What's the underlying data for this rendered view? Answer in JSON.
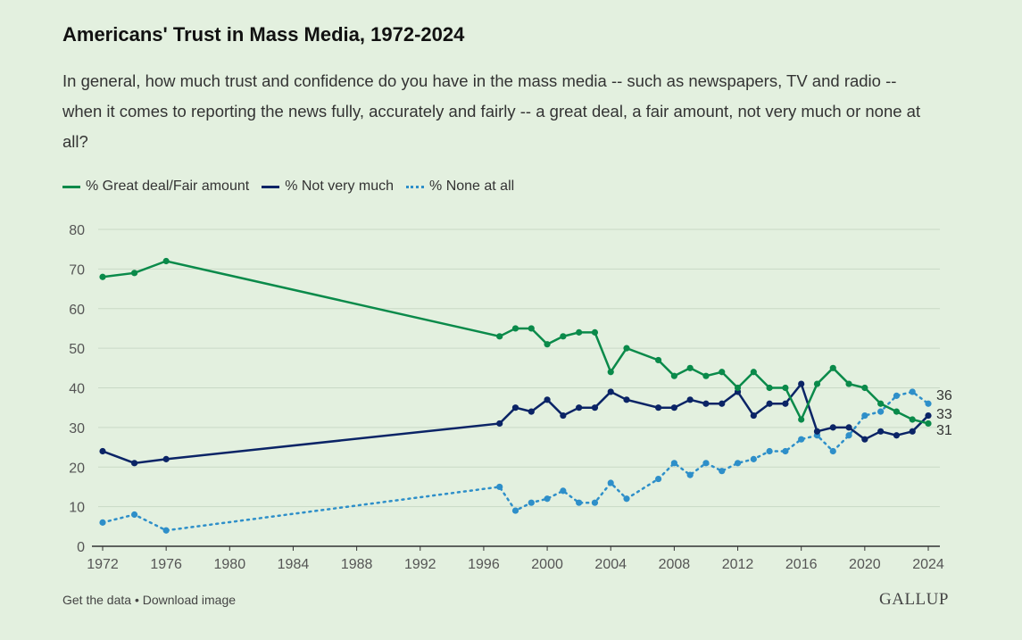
{
  "title": "Americans' Trust in Mass Media, 1972-2024",
  "subtitle": "In general, how much trust and confidence do you have in the mass media -- such as newspapers, TV and radio -- when it comes to reporting the news fully, accurately and fairly -- a great deal, a fair amount, not very much or none at all?",
  "footer": {
    "get_data": "Get the data",
    "sep": " • ",
    "download": "Download image",
    "logo": "GALLUP"
  },
  "chart_data": {
    "type": "line",
    "title": "Americans' Trust in Mass Media, 1972-2024",
    "xlabel": "",
    "ylabel": "",
    "ylim": [
      0,
      80
    ],
    "xlim": [
      1972,
      2024
    ],
    "x_ticks": [
      "1972",
      "1976",
      "1980",
      "1984",
      "1988",
      "1992",
      "1996",
      "2000",
      "2004",
      "2008",
      "2012",
      "2016",
      "2020",
      "2024"
    ],
    "y_ticks": [
      "0",
      "10",
      "20",
      "30",
      "40",
      "50",
      "60",
      "70",
      "80"
    ],
    "grid": true,
    "legend_position": "top-left",
    "x": [
      1972,
      1974,
      1976,
      1997,
      1998,
      1999,
      2000,
      2001,
      2002,
      2003,
      2004,
      2005,
      2007,
      2008,
      2009,
      2010,
      2011,
      2012,
      2013,
      2014,
      2015,
      2016,
      2017,
      2018,
      2019,
      2020,
      2021,
      2022,
      2023,
      2024
    ],
    "series": [
      {
        "name": "% Great deal/Fair amount",
        "color": "#0a8a4a",
        "style": "solid",
        "end_label": "31",
        "values": [
          68,
          69,
          72,
          53,
          55,
          55,
          51,
          53,
          54,
          54,
          44,
          50,
          47,
          43,
          45,
          43,
          44,
          40,
          44,
          40,
          40,
          32,
          41,
          45,
          41,
          40,
          36,
          34,
          32,
          31
        ]
      },
      {
        "name": "% Not very much",
        "color": "#0b2466",
        "style": "solid",
        "end_label": "33",
        "values": [
          24,
          21,
          22,
          31,
          35,
          34,
          37,
          33,
          35,
          35,
          39,
          37,
          35,
          35,
          37,
          36,
          36,
          39,
          33,
          36,
          36,
          41,
          29,
          30,
          30,
          27,
          29,
          28,
          29,
          33
        ]
      },
      {
        "name": "% None at all",
        "color": "#2e8fc9",
        "style": "dotted",
        "end_label": "36",
        "values": [
          6,
          8,
          4,
          15,
          9,
          11,
          12,
          14,
          11,
          11,
          16,
          12,
          17,
          21,
          18,
          21,
          19,
          21,
          22,
          24,
          24,
          27,
          28,
          24,
          28,
          33,
          34,
          38,
          39,
          36
        ]
      }
    ]
  }
}
